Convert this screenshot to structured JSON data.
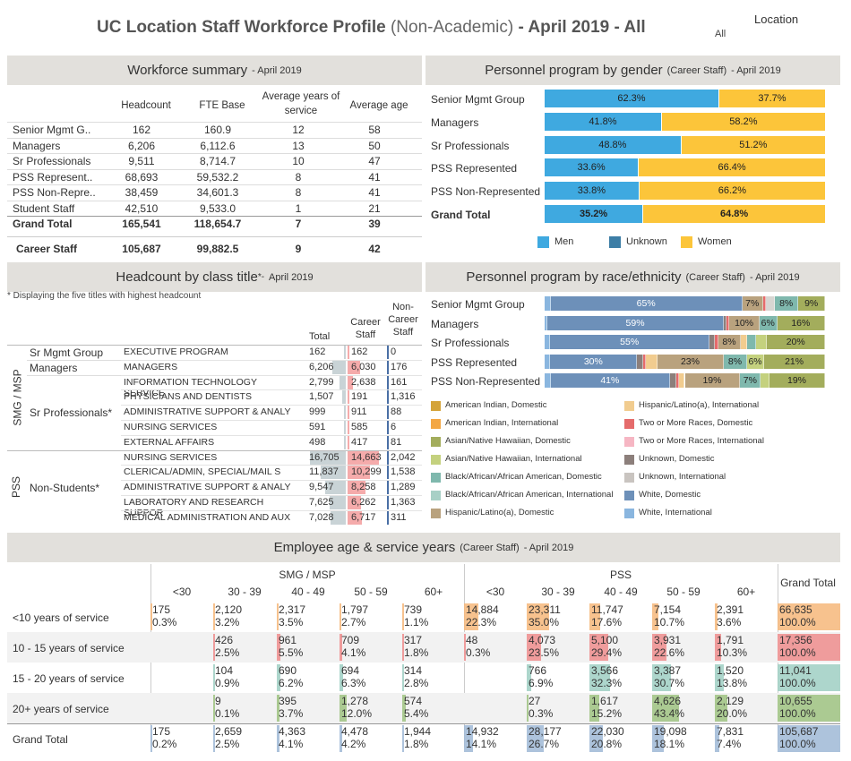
{
  "title": {
    "main": "UC Location Staff Workforce Profile",
    "paren": "(Non-Academic)",
    "suffix": "- April 2019 - All"
  },
  "location": {
    "label": "Location",
    "value": "All"
  },
  "summary": {
    "header": "Workforce summary",
    "header_sub": "- April 2019",
    "columns": [
      "Headcount",
      "FTE Base",
      "Average years of service",
      "Average age"
    ],
    "rows": [
      {
        "name": "Senior Mgmt G..",
        "headcount": "162",
        "fte": "160.9",
        "years": "12",
        "age": "58"
      },
      {
        "name": "Managers",
        "headcount": "6,206",
        "fte": "6,112.6",
        "years": "13",
        "age": "50"
      },
      {
        "name": "Sr Professionals",
        "headcount": "9,511",
        "fte": "8,714.7",
        "years": "10",
        "age": "47"
      },
      {
        "name": "PSS Represent..",
        "headcount": "68,693",
        "fte": "59,532.2",
        "years": "8",
        "age": "41"
      },
      {
        "name": "PSS Non-Repre..",
        "headcount": "38,459",
        "fte": "34,601.3",
        "years": "8",
        "age": "41"
      },
      {
        "name": "Student Staff",
        "headcount": "42,510",
        "fte": "9,533.0",
        "years": "1",
        "age": "21"
      }
    ],
    "grand_total": {
      "name": "Grand Total",
      "headcount": "165,541",
      "fte": "118,654.7",
      "years": "7",
      "age": "39"
    },
    "career": {
      "name": "Career Staff",
      "headcount": "105,687",
      "fte": "99,882.5",
      "years": "9",
      "age": "42"
    }
  },
  "gender": {
    "header": "Personnel program by gender",
    "header_paren": "(Career Staff)",
    "header_sub": "- April 2019",
    "rows": [
      {
        "name": "Senior Mgmt Group",
        "men": 62.3,
        "women": 37.7,
        "men_label": "62.3%",
        "women_label": "37.7%"
      },
      {
        "name": "Managers",
        "men": 41.8,
        "women": 58.2,
        "men_label": "41.8%",
        "women_label": "58.2%"
      },
      {
        "name": "Sr Professionals",
        "men": 48.8,
        "women": 51.2,
        "men_label": "48.8%",
        "women_label": "51.2%"
      },
      {
        "name": "PSS Represented",
        "men": 33.6,
        "women": 66.4,
        "men_label": "33.6%",
        "women_label": "66.4%"
      },
      {
        "name": "PSS Non-Represented",
        "men": 33.8,
        "women": 66.2,
        "men_label": "33.8%",
        "women_label": "66.2%"
      },
      {
        "name": "Grand Total",
        "men": 35.2,
        "women": 64.8,
        "men_label": "35.2%",
        "women_label": "64.8%",
        "bold": true
      }
    ],
    "legend": [
      {
        "name": "Men",
        "color": "#3fa9e0"
      },
      {
        "name": "Unknown",
        "color": "#3d7ea6"
      },
      {
        "name": "Women",
        "color": "#fcc53a"
      }
    ]
  },
  "classtitle": {
    "header": "Headcount by class title",
    "header_mark": "*-",
    "header_sub": "April 2019",
    "note": "* Displaying the five titles with highest headcount",
    "col_total": "Total",
    "col_career": "Career Staff",
    "col_noncareer": "Non-Career Staff",
    "group1": "SMG / MSP",
    "group2": "PSS",
    "sub_sr": "Sr Mgmt Group",
    "sub_mgr": "Managers",
    "sub_srp": "Sr Professionals*",
    "sub_ns": "Non-Students*",
    "rows": [
      {
        "title": "EXECUTIVE PROGRAM",
        "total": "162",
        "career": "162",
        "noncareer": "0",
        "tv": 162,
        "cv": 162
      },
      {
        "title": "MANAGERS",
        "total": "6,206",
        "career": "6,030",
        "noncareer": "176",
        "tv": 6206,
        "cv": 6030
      },
      {
        "title": "INFORMATION TECHNOLOGY SERVICE",
        "total": "2,799",
        "career": "2,638",
        "noncareer": "161",
        "tv": 2799,
        "cv": 2638
      },
      {
        "title": "PHYSICIANS AND DENTISTS",
        "total": "1,507",
        "career": "191",
        "noncareer": "1,316",
        "tv": 1507,
        "cv": 191
      },
      {
        "title": "ADMINISTRATIVE SUPPORT & ANALY",
        "total": "999",
        "career": "911",
        "noncareer": "88",
        "tv": 999,
        "cv": 911
      },
      {
        "title": "NURSING SERVICES",
        "total": "591",
        "career": "585",
        "noncareer": "6",
        "tv": 591,
        "cv": 585
      },
      {
        "title": "EXTERNAL AFFAIRS",
        "total": "498",
        "career": "417",
        "noncareer": "81",
        "tv": 498,
        "cv": 417
      },
      {
        "title": "NURSING SERVICES",
        "total": "16,705",
        "career": "14,663",
        "noncareer": "2,042",
        "tv": 16705,
        "cv": 14663
      },
      {
        "title": "CLERICAL/ADMIN, SPECIAL/MAIL S",
        "total": "11,837",
        "career": "10,299",
        "noncareer": "1,538",
        "tv": 11837,
        "cv": 10299
      },
      {
        "title": "ADMINISTRATIVE SUPPORT & ANALY",
        "total": "9,547",
        "career": "8,258",
        "noncareer": "1,289",
        "tv": 9547,
        "cv": 8258
      },
      {
        "title": "LABORATORY AND RESEARCH SUPPOR",
        "total": "7,625",
        "career": "6,262",
        "noncareer": "1,363",
        "tv": 7625,
        "cv": 6262
      },
      {
        "title": "MEDICAL ADMINISTRATION AND AUX",
        "total": "7,028",
        "career": "6,717",
        "noncareer": "311",
        "tv": 7028,
        "cv": 6717
      }
    ]
  },
  "race": {
    "header": "Personnel program by race/ethnicity",
    "header_paren": "(Career Staff)",
    "header_sub": "- April 2019",
    "rows": [
      {
        "name": "Senior Mgmt Group",
        "segments": [
          {
            "c": "#8ab6df",
            "v": 2
          },
          {
            "c": "#6d90b9",
            "v": 65,
            "l": "65%"
          },
          {
            "c": "#b9a27e",
            "v": 7,
            "l": "7%"
          },
          {
            "c": "#e56b6b",
            "v": 1
          },
          {
            "c": "#d8d6d2",
            "v": 3
          },
          {
            "c": "#7fb8ad",
            "v": 8,
            "l": "8%"
          },
          {
            "c": "#a3ad5c",
            "v": 9,
            "l": "9%"
          }
        ]
      },
      {
        "name": "Managers",
        "segments": [
          {
            "c": "#8ab6df",
            "v": 1
          },
          {
            "c": "#6d90b9",
            "v": 59,
            "l": "59%"
          },
          {
            "c": "#8c7f7b",
            "v": 1
          },
          {
            "c": "#e56b6b",
            "v": 1
          },
          {
            "c": "#b9a27e",
            "v": 10,
            "l": "10%"
          },
          {
            "c": "#7fb8ad",
            "v": 6,
            "l": "6%"
          },
          {
            "c": "#a3ad5c",
            "v": 16,
            "l": "16%"
          }
        ]
      },
      {
        "name": "Sr Professionals",
        "segments": [
          {
            "c": "#8ab6df",
            "v": 2
          },
          {
            "c": "#6d90b9",
            "v": 55,
            "l": "55%"
          },
          {
            "c": "#8c7f7b",
            "v": 2
          },
          {
            "c": "#e56b6b",
            "v": 1
          },
          {
            "c": "#b9a27e",
            "v": 8,
            "l": "8%"
          },
          {
            "c": "#f1cc8f",
            "v": 2
          },
          {
            "c": "#7fb8ad",
            "v": 3
          },
          {
            "c": "#c4d17e",
            "v": 4
          },
          {
            "c": "#a3ad5c",
            "v": 20,
            "l": "20%"
          }
        ]
      },
      {
        "name": "PSS Represented",
        "segments": [
          {
            "c": "#8ab6df",
            "v": 2
          },
          {
            "c": "#6d90b9",
            "v": 30,
            "l": "30%"
          },
          {
            "c": "#8c7f7b",
            "v": 2
          },
          {
            "c": "#e56b6b",
            "v": 1
          },
          {
            "c": "#f1cc8f",
            "v": 4
          },
          {
            "c": "#b9a27e",
            "v": 23,
            "l": "23%"
          },
          {
            "c": "#7fb8ad",
            "v": 8,
            "l": "8%"
          },
          {
            "c": "#c4d17e",
            "v": 6,
            "l": "6%"
          },
          {
            "c": "#a3ad5c",
            "v": 21,
            "l": "21%"
          }
        ]
      },
      {
        "name": "PSS Non-Represented",
        "segments": [
          {
            "c": "#8ab6df",
            "v": 2
          },
          {
            "c": "#6d90b9",
            "v": 41,
            "l": "41%"
          },
          {
            "c": "#8c7f7b",
            "v": 2
          },
          {
            "c": "#e56b6b",
            "v": 1
          },
          {
            "c": "#f1cc8f",
            "v": 2
          },
          {
            "c": "#b9a27e",
            "v": 19,
            "l": "19%"
          },
          {
            "c": "#7fb8ad",
            "v": 7,
            "l": "7%"
          },
          {
            "c": "#c4d17e",
            "v": 3
          },
          {
            "c": "#a3ad5c",
            "v": 19,
            "l": "19%"
          }
        ]
      }
    ],
    "legend": [
      {
        "name": "American Indian, Domestic",
        "color": "#d4a43a"
      },
      {
        "name": "Hispanic/Latino(a), International",
        "color": "#f1cc8f"
      },
      {
        "name": "American Indian, International",
        "color": "#f3a744"
      },
      {
        "name": "Two or More Races, Domestic",
        "color": "#e56b6b"
      },
      {
        "name": "Asian/Native Hawaiian, Domestic",
        "color": "#a3ad5c"
      },
      {
        "name": "Two or More Races, International",
        "color": "#f6b6c3"
      },
      {
        "name": "Asian/Native Hawaiian, International",
        "color": "#c4d17e"
      },
      {
        "name": "Unknown, Domestic",
        "color": "#8c7f7b"
      },
      {
        "name": "Black/African/African American, Domestic",
        "color": "#7fb8ad"
      },
      {
        "name": "Unknown, International",
        "color": "#c9c4c0"
      },
      {
        "name": "Black/African/African American, International",
        "color": "#a8d0c6"
      },
      {
        "name": "White, Domestic",
        "color": "#6d90b9"
      },
      {
        "name": "Hispanic/Latino(a), Domestic",
        "color": "#b9a27e"
      },
      {
        "name": "White, International",
        "color": "#8ab6df"
      }
    ]
  },
  "age": {
    "header": "Employee age & service years",
    "header_paren": "(Career Staff)",
    "header_sub": "- April 2019",
    "group1": "SMG / MSP",
    "group2": "PSS",
    "grand_total": "Grand Total",
    "cols": [
      "<30",
      "30 - 39",
      "40 - 49",
      "50 - 59",
      "60+"
    ],
    "rows": [
      {
        "name": "<10 years of service",
        "cells": [
          [
            "175",
            "0.3%"
          ],
          [
            "2,120",
            "3.2%"
          ],
          [
            "2,317",
            "3.5%"
          ],
          [
            "1,797",
            "2.7%"
          ],
          [
            "739",
            "1.1%"
          ],
          [
            "14,884",
            "22.3%"
          ],
          [
            "23,311",
            "35.0%"
          ],
          [
            "11,747",
            "17.6%"
          ],
          [
            "7,154",
            "10.7%"
          ],
          [
            "2,391",
            "3.6%"
          ],
          [
            "66,635",
            "100.0%"
          ]
        ],
        "pct": [
          0.3,
          3.2,
          3.5,
          2.7,
          1.1,
          22.3,
          35.0,
          17.6,
          10.7,
          3.6,
          100
        ],
        "color": "#f6b77a"
      },
      {
        "name": "10 - 15 years of service",
        "cells": [
          [
            "",
            ""
          ],
          [
            "426",
            "2.5%"
          ],
          [
            "961",
            "5.5%"
          ],
          [
            "709",
            "4.1%"
          ],
          [
            "317",
            "1.8%"
          ],
          [
            "48",
            "0.3%"
          ],
          [
            "4,073",
            "23.5%"
          ],
          [
            "5,100",
            "29.4%"
          ],
          [
            "3,931",
            "22.6%"
          ],
          [
            "1,791",
            "10.3%"
          ],
          [
            "17,356",
            "100.0%"
          ]
        ],
        "pct": [
          0,
          2.5,
          5.5,
          4.1,
          1.8,
          0.3,
          23.5,
          29.4,
          22.6,
          10.3,
          100
        ],
        "color": "#ee8d8d"
      },
      {
        "name": "15 - 20 years of service",
        "cells": [
          [
            "",
            ""
          ],
          [
            "104",
            "0.9%"
          ],
          [
            "690",
            "6.2%"
          ],
          [
            "694",
            "6.3%"
          ],
          [
            "314",
            "2.8%"
          ],
          [
            "",
            ""
          ],
          [
            "766",
            "6.9%"
          ],
          [
            "3,566",
            "32.3%"
          ],
          [
            "3,387",
            "30.7%"
          ],
          [
            "1,520",
            "13.8%"
          ],
          [
            "11,041",
            "100.0%"
          ]
        ],
        "pct": [
          0,
          0.9,
          6.2,
          6.3,
          2.8,
          0,
          6.9,
          32.3,
          30.7,
          13.8,
          100
        ],
        "color": "#9fcfc3"
      },
      {
        "name": "20+ years of service",
        "cells": [
          [
            "",
            ""
          ],
          [
            "9",
            "0.1%"
          ],
          [
            "395",
            "3.7%"
          ],
          [
            "1,278",
            "12.0%"
          ],
          [
            "574",
            "5.4%"
          ],
          [
            "",
            ""
          ],
          [
            "27",
            "0.3%"
          ],
          [
            "1,617",
            "15.2%"
          ],
          [
            "4,626",
            "43.4%"
          ],
          [
            "2,129",
            "20.0%"
          ],
          [
            "10,655",
            "100.0%"
          ]
        ],
        "pct": [
          0,
          0.1,
          3.7,
          12.0,
          5.4,
          0,
          0.3,
          15.2,
          43.4,
          20.0,
          100
        ],
        "color": "#9fc381"
      },
      {
        "name": "Grand Total",
        "cells": [
          [
            "175",
            "0.2%"
          ],
          [
            "2,659",
            "2.5%"
          ],
          [
            "4,363",
            "4.1%"
          ],
          [
            "4,478",
            "4.2%"
          ],
          [
            "1,944",
            "1.8%"
          ],
          [
            "14,932",
            "14.1%"
          ],
          [
            "28,177",
            "26.7%"
          ],
          [
            "22,030",
            "20.8%"
          ],
          [
            "19,098",
            "18.1%"
          ],
          [
            "7,831",
            "7.4%"
          ],
          [
            "105,687",
            "100.0%"
          ]
        ],
        "pct": [
          0.2,
          2.5,
          4.1,
          4.2,
          1.8,
          14.1,
          26.7,
          20.8,
          18.1,
          7.4,
          100
        ],
        "color": "#9fb8d6"
      }
    ]
  }
}
